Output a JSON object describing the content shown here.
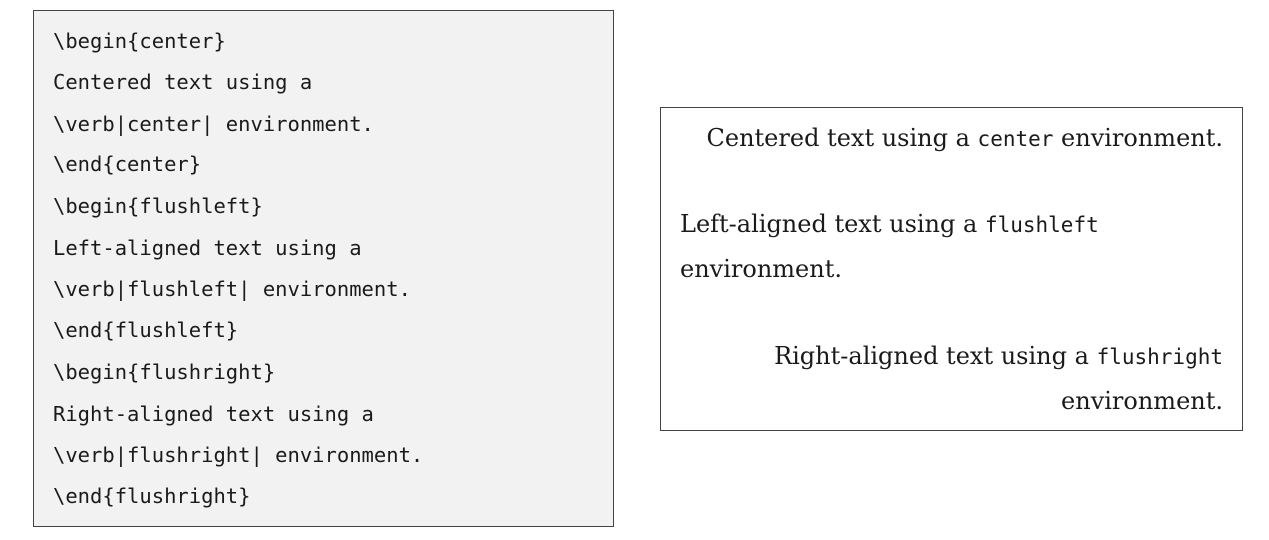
{
  "source": {
    "lines": [
      "\\begin{center}",
      "Centered text using a",
      "\\verb|center| environment.",
      "\\end{center}",
      "\\begin{flushleft}",
      "Left-aligned text using a",
      "\\verb|flushleft| environment.",
      "\\end{flushleft}",
      "\\begin{flushright}",
      "Right-aligned text using a",
      "\\verb|flushright| environment.",
      "\\end{flushright}"
    ]
  },
  "output": {
    "center": {
      "before": "Centered text using a ",
      "code": "center",
      "after": " environment."
    },
    "flushleft": {
      "line1_before": "Left-aligned text using a ",
      "line1_code": "flushleft",
      "line2": "environment."
    },
    "flushright": {
      "line1_before": "Right-aligned text using a ",
      "line1_code": "flushright",
      "line2": "environment."
    }
  },
  "colors": {
    "code_background": "#f2f2f2",
    "border": "#444444",
    "text": "#1a1a1a"
  }
}
